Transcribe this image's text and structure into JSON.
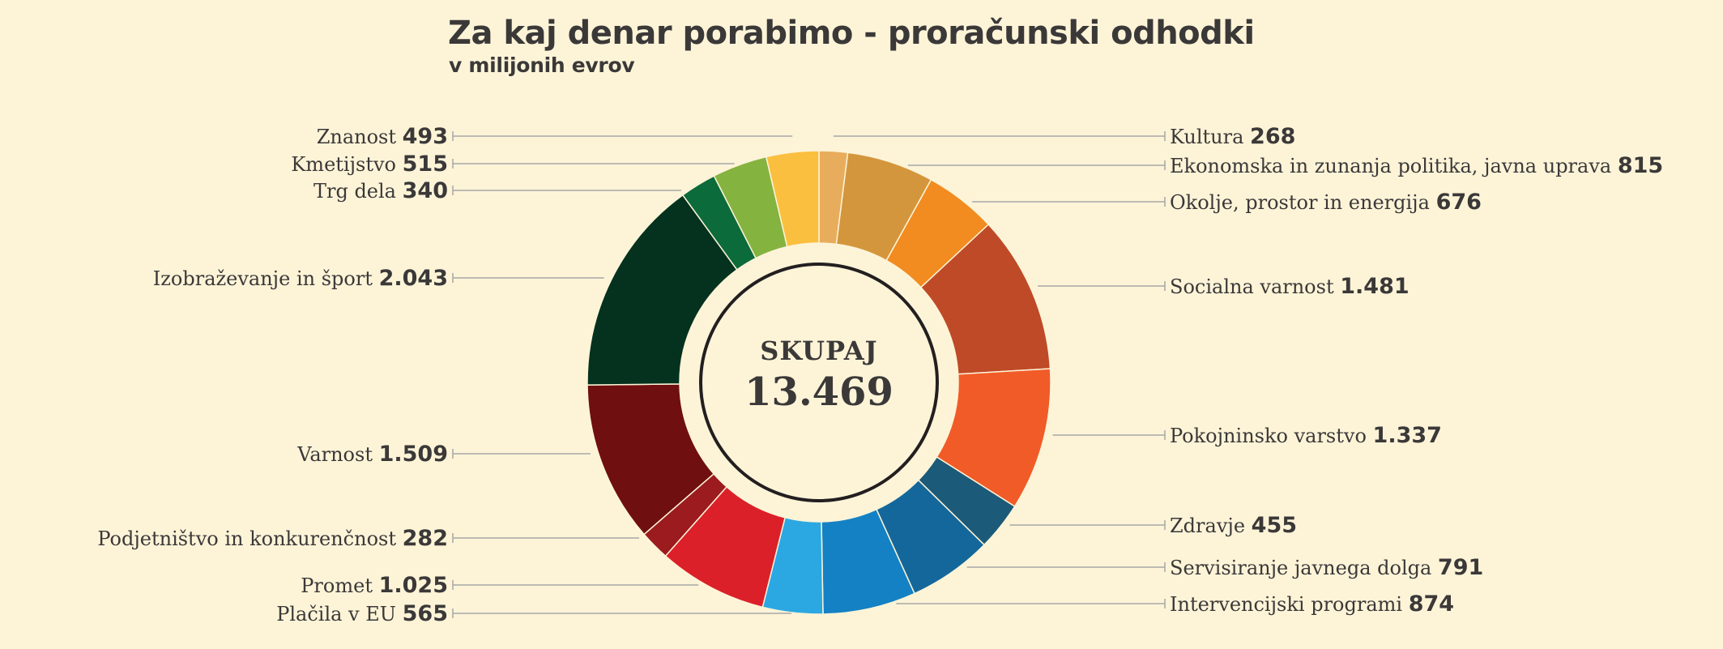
{
  "chart_data": {
    "type": "pie",
    "variant": "donut",
    "title": "Za kaj denar porabimo - proračunski odhodki",
    "subtitle": "v milijonih evrov",
    "center": {
      "label": "SKUPAJ",
      "value": "13.469"
    },
    "slices": [
      {
        "name": "Kultura",
        "value": 268,
        "value_label": "268",
        "color": "#e8ad5c",
        "side": "right"
      },
      {
        "name": "Ekonomska in zunanja politika, javna uprava",
        "value": 815,
        "value_label": "815",
        "color": "#d4963c",
        "side": "right"
      },
      {
        "name": "Okolje, prostor in energija",
        "value": 676,
        "value_label": "676",
        "color": "#f28c20",
        "side": "right"
      },
      {
        "name": "Socialna varnost",
        "value": 1481,
        "value_label": "1.481",
        "color": "#bf4a27",
        "side": "right"
      },
      {
        "name": "Pokojninsko varstvo",
        "value": 1337,
        "value_label": "1.337",
        "color": "#f15b27",
        "side": "right"
      },
      {
        "name": "Zdravje",
        "value": 455,
        "value_label": "455",
        "color": "#1b5a78",
        "side": "right"
      },
      {
        "name": "Servisiranje javnega dolga",
        "value": 791,
        "value_label": "791",
        "color": "#14679a",
        "side": "right"
      },
      {
        "name": "Intervencijski programi",
        "value": 874,
        "value_label": "874",
        "color": "#1481c4",
        "side": "right"
      },
      {
        "name": "Plačila v EU",
        "value": 565,
        "value_label": "565",
        "color": "#2ba8e2",
        "side": "left"
      },
      {
        "name": "Promet",
        "value": 1025,
        "value_label": "1.025",
        "color": "#dc2029",
        "side": "left"
      },
      {
        "name": "Podjetništvo in konkurenčnost",
        "value": 282,
        "value_label": "282",
        "color": "#9b1b1f",
        "side": "left"
      },
      {
        "name": "Varnost",
        "value": 1509,
        "value_label": "1.509",
        "color": "#6f0f0f",
        "side": "left"
      },
      {
        "name": "Izobraževanje in šport",
        "value": 2043,
        "value_label": "2.043",
        "color": "#04321e",
        "side": "left"
      },
      {
        "name": "Trg dela",
        "value": 340,
        "value_label": "340",
        "color": "#0c6b3a",
        "side": "left"
      },
      {
        "name": "Kmetijstvo",
        "value": 515,
        "value_label": "515",
        "color": "#85b340",
        "side": "left"
      },
      {
        "name": "Znanost",
        "value": 493,
        "value_label": "493",
        "color": "#fbbf3f",
        "side": "left"
      }
    ]
  },
  "colors": {
    "background": "#fdf4d8",
    "text": "#3b3838",
    "leader_line": "#a6a6a6",
    "center_ring": "#231f20"
  }
}
